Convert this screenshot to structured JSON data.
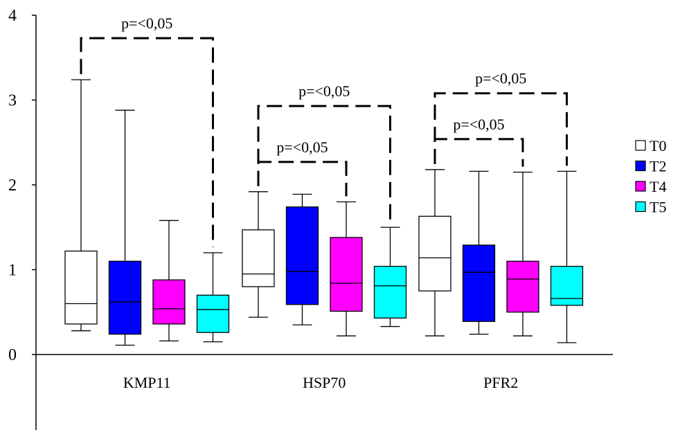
{
  "chart_data": {
    "type": "box",
    "title": "",
    "xlabel": "",
    "ylabel": "",
    "ylim": [
      0,
      4
    ],
    "yticks": [
      "0",
      "1",
      "2",
      "3",
      "4"
    ],
    "grid": false,
    "legend_position": "right",
    "categories": [
      "KMP11",
      "HSP70",
      "PFR2"
    ],
    "series": [
      {
        "name": "T0",
        "color": "#ffffff",
        "boxes": [
          {
            "min": 0.28,
            "q1": 0.36,
            "median": 0.6,
            "q3": 1.22,
            "max": 3.24
          },
          {
            "min": 0.44,
            "q1": 0.8,
            "median": 0.95,
            "q3": 1.47,
            "max": 1.92
          },
          {
            "min": 0.22,
            "q1": 0.75,
            "median": 1.14,
            "q3": 1.63,
            "max": 2.18
          }
        ]
      },
      {
        "name": "T2",
        "color": "#0000ff",
        "boxes": [
          {
            "min": 0.11,
            "q1": 0.24,
            "median": 0.62,
            "q3": 1.1,
            "max": 2.88
          },
          {
            "min": 0.35,
            "q1": 0.59,
            "median": 0.98,
            "q3": 1.74,
            "max": 1.89
          },
          {
            "min": 0.24,
            "q1": 0.39,
            "median": 0.97,
            "q3": 1.29,
            "max": 2.16
          }
        ]
      },
      {
        "name": "T4",
        "color": "#ff00ff",
        "boxes": [
          {
            "min": 0.16,
            "q1": 0.36,
            "median": 0.54,
            "q3": 0.88,
            "max": 1.58
          },
          {
            "min": 0.22,
            "q1": 0.51,
            "median": 0.84,
            "q3": 1.38,
            "max": 1.8
          },
          {
            "min": 0.22,
            "q1": 0.5,
            "median": 0.89,
            "q3": 1.1,
            "max": 2.15
          }
        ]
      },
      {
        "name": "T5",
        "color": "#00ffff",
        "boxes": [
          {
            "min": 0.15,
            "q1": 0.26,
            "median": 0.53,
            "q3": 0.7,
            "max": 1.2
          },
          {
            "min": 0.33,
            "q1": 0.43,
            "median": 0.81,
            "q3": 1.04,
            "max": 1.5
          },
          {
            "min": 0.14,
            "q1": 0.58,
            "median": 0.66,
            "q3": 1.04,
            "max": 2.16
          }
        ]
      }
    ],
    "annotations": [
      {
        "text": "p=<0,05",
        "category": 0,
        "from": "T0",
        "to": "T5",
        "level": 3.73
      },
      {
        "text": "p=<0,05",
        "category": 1,
        "from": "T0",
        "to": "T5",
        "level": 2.93
      },
      {
        "text": "p=<0,05",
        "category": 1,
        "from": "T0",
        "to": "T4",
        "level": 2.27
      },
      {
        "text": "p=<0,05",
        "category": 2,
        "from": "T0",
        "to": "T5",
        "level": 3.08
      },
      {
        "text": "p=<0,05",
        "category": 2,
        "from": "T0",
        "to": "T4",
        "level": 2.54
      }
    ]
  }
}
